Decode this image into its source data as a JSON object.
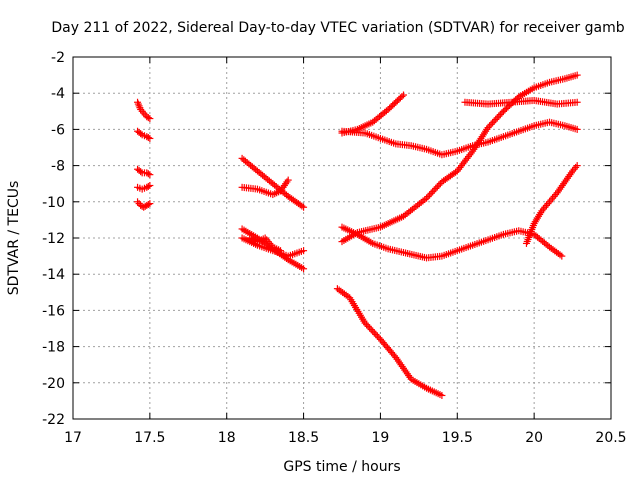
{
  "chart_data": {
    "type": "scatter",
    "title": "Day 211 of 2022, Sidereal Day-to-day VTEC variation (SDTVAR) for receiver gamb",
    "xlabel": "GPS time / hours",
    "ylabel": "SDTVAR / TECUs",
    "xlim": [
      17,
      20.5
    ],
    "ylim": [
      -22,
      -2
    ],
    "xticks": [
      "17",
      "17.5",
      "18",
      "18.5",
      "19",
      "19.5",
      "20",
      "20.5"
    ],
    "yticks": [
      "-22",
      "-20",
      "-18",
      "-16",
      "-14",
      "-12",
      "-10",
      "-8",
      "-6",
      "-4",
      "-2"
    ],
    "grid": true,
    "marker": "+",
    "color": "#ff0000",
    "series": [
      {
        "name": "s1",
        "x": [
          17.42,
          17.44,
          17.46,
          17.48,
          17.5
        ],
        "y": [
          -4.5,
          -4.9,
          -5.1,
          -5.3,
          -5.4
        ]
      },
      {
        "name": "s2",
        "x": [
          17.42,
          17.45,
          17.48,
          17.5
        ],
        "y": [
          -6.1,
          -6.3,
          -6.4,
          -6.5
        ]
      },
      {
        "name": "s3",
        "x": [
          17.42,
          17.45,
          17.48,
          17.5
        ],
        "y": [
          -8.2,
          -8.4,
          -8.4,
          -8.5
        ]
      },
      {
        "name": "s4",
        "x": [
          17.42,
          17.45,
          17.48,
          17.5
        ],
        "y": [
          -9.2,
          -9.3,
          -9.2,
          -9.1
        ]
      },
      {
        "name": "s5",
        "x": [
          17.42,
          17.44,
          17.46,
          17.48,
          17.5
        ],
        "y": [
          -10.0,
          -10.2,
          -10.3,
          -10.2,
          -10.1
        ]
      },
      {
        "name": "s6",
        "x": [
          18.1,
          18.2,
          18.3,
          18.4,
          18.5
        ],
        "y": [
          -7.6,
          -8.3,
          -9.0,
          -9.7,
          -10.3
        ]
      },
      {
        "name": "s7",
        "x": [
          18.1,
          18.2,
          18.3,
          18.35,
          18.4
        ],
        "y": [
          -9.2,
          -9.3,
          -9.6,
          -9.4,
          -8.8
        ]
      },
      {
        "name": "s8",
        "x": [
          18.1,
          18.2,
          18.3,
          18.4,
          18.5
        ],
        "y": [
          -11.5,
          -12.0,
          -12.6,
          -13.2,
          -13.7
        ]
      },
      {
        "name": "s9",
        "x": [
          18.1,
          18.2,
          18.3,
          18.4,
          18.5
        ],
        "y": [
          -12.0,
          -12.4,
          -12.7,
          -13.0,
          -12.7
        ]
      },
      {
        "name": "s10",
        "x": [
          18.15,
          18.2,
          18.25,
          18.3,
          18.35
        ],
        "y": [
          -12.0,
          -12.2,
          -12.0,
          -12.5,
          -12.7
        ]
      },
      {
        "name": "s11",
        "x": [
          18.75,
          18.85,
          18.95,
          19.05,
          19.15
        ],
        "y": [
          -6.2,
          -6.0,
          -5.6,
          -4.9,
          -4.1
        ]
      },
      {
        "name": "s12",
        "x": [
          18.75,
          18.9,
          19.0,
          19.1,
          19.2,
          19.3,
          19.4,
          19.5,
          19.6,
          19.7,
          19.8,
          19.9,
          20.0,
          20.1,
          20.2,
          20.28
        ],
        "y": [
          -6.1,
          -6.2,
          -6.5,
          -6.8,
          -6.9,
          -7.1,
          -7.4,
          -7.2,
          -6.9,
          -6.7,
          -6.4,
          -6.1,
          -5.8,
          -5.6,
          -5.8,
          -6.0
        ]
      },
      {
        "name": "s13",
        "x": [
          19.55,
          19.7,
          19.85,
          20.0,
          20.15,
          20.28
        ],
        "y": [
          -4.5,
          -4.6,
          -4.5,
          -4.4,
          -4.6,
          -4.5
        ]
      },
      {
        "name": "s14",
        "x": [
          18.75,
          18.85,
          19.0,
          19.15,
          19.3,
          19.4,
          19.5,
          19.6,
          19.7,
          19.8,
          19.9,
          20.0,
          20.1,
          20.2,
          20.28
        ],
        "y": [
          -12.2,
          -11.7,
          -11.4,
          -10.8,
          -9.8,
          -8.9,
          -8.3,
          -7.2,
          -5.9,
          -5.0,
          -4.2,
          -3.7,
          -3.4,
          -3.2,
          -3.0
        ]
      },
      {
        "name": "s15",
        "x": [
          18.75,
          18.85,
          18.95,
          19.05,
          19.15,
          19.3,
          19.4,
          19.5,
          19.6,
          19.7,
          19.8,
          19.9,
          20.0,
          20.1,
          20.18
        ],
        "y": [
          -11.4,
          -11.8,
          -12.3,
          -12.6,
          -12.8,
          -13.1,
          -13.0,
          -12.7,
          -12.4,
          -12.1,
          -11.8,
          -11.6,
          -11.8,
          -12.5,
          -13.0
        ]
      },
      {
        "name": "s16",
        "x": [
          19.95,
          20.0,
          20.05,
          20.1,
          20.15,
          20.2,
          20.25,
          20.28
        ],
        "y": [
          -12.3,
          -11.2,
          -10.5,
          -10.0,
          -9.5,
          -8.9,
          -8.3,
          -8.0
        ]
      },
      {
        "name": "s17",
        "x": [
          18.72,
          18.8,
          18.9,
          19.0,
          19.1,
          19.2,
          19.3,
          19.4
        ],
        "y": [
          -14.8,
          -15.3,
          -16.7,
          -17.6,
          -18.6,
          -19.8,
          -20.3,
          -20.7
        ]
      }
    ]
  }
}
